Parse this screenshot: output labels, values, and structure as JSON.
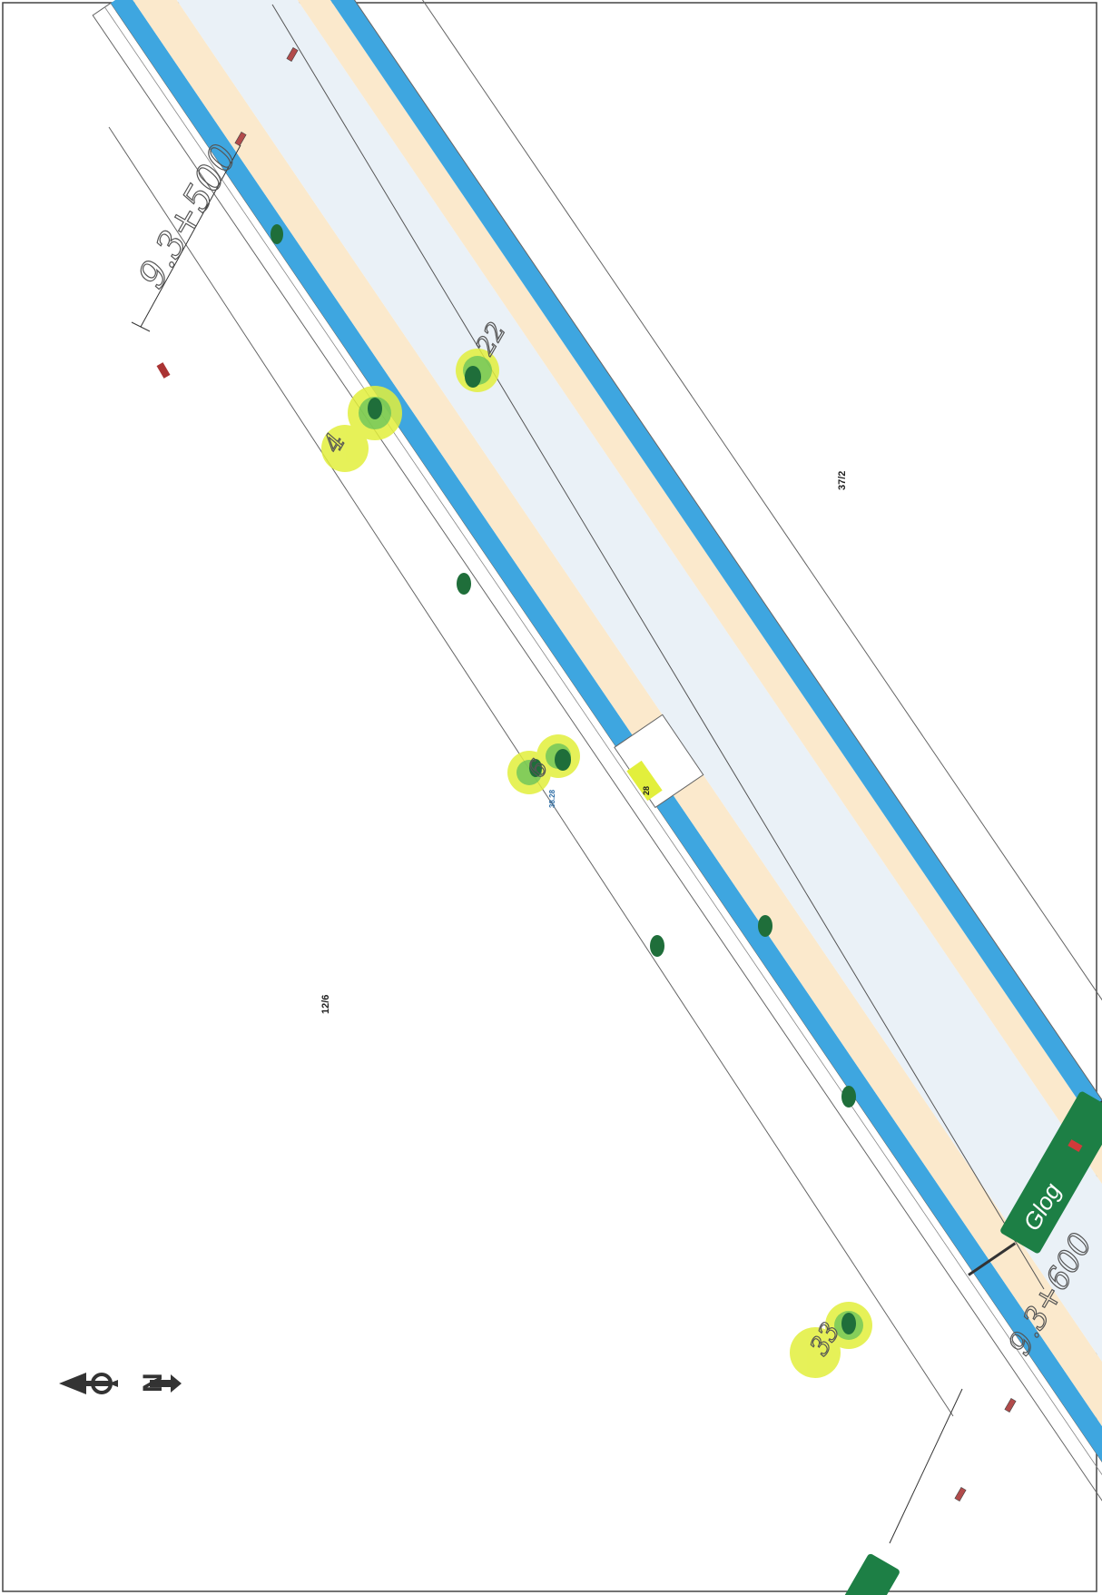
{
  "map": {
    "labels": {
      "chainage_top": "9.3+500",
      "chainage_bottom": "9.3+600",
      "parcel_left": "12/6",
      "parcel_right": "37/2",
      "tree_id_left": "4",
      "tree_id_top": "22",
      "tree_id_center": "6",
      "tree_id_bottom": "33",
      "road_mark_small": "38.28",
      "highlight_box": "28",
      "sign_text": "Glog"
    },
    "colors": {
      "water": "#3ea6e0",
      "verge": "#fbe9cc",
      "carriageway": "#eaf1f7",
      "tree": "#1f6e3a",
      "highlight": "#e2ef3c",
      "sign": "#1d7f45"
    },
    "north_arrow": {
      "letter": "N",
      "icon": "north-arrow-icon"
    }
  }
}
